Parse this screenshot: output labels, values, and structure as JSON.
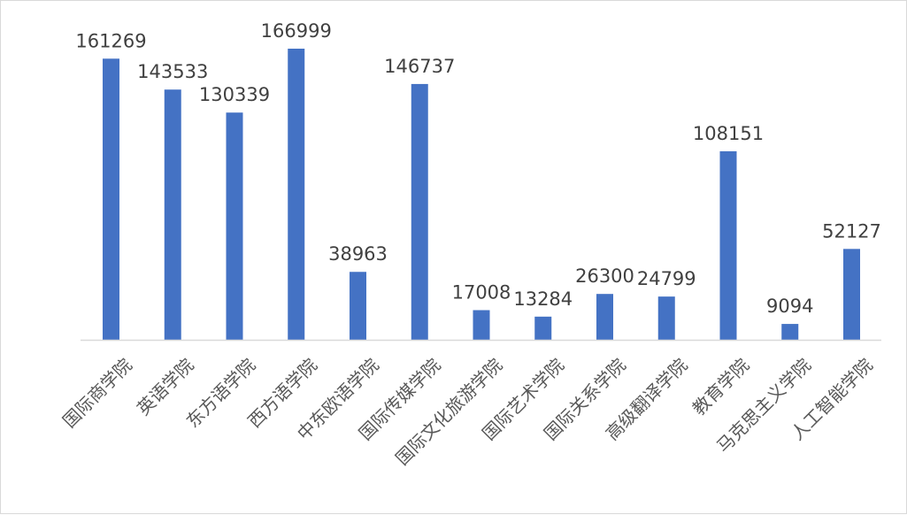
{
  "chart_data": {
    "type": "bar",
    "title": "",
    "xlabel": "",
    "ylabel": "",
    "color": "#4472C4",
    "axis_color": "#d9d9d9",
    "categories": [
      "国际商学院",
      "英语学院",
      "东方语学院",
      "西方语学院",
      "中东欧语学院",
      "国际传媒学院",
      "国际文化旅游学院",
      "国际艺术学院",
      "国际关系学院",
      "高级翻译学院",
      "教育学院",
      "马克思主义学院",
      "人工智能学院"
    ],
    "values": [
      161269,
      143533,
      130339,
      166999,
      38963,
      146737,
      17008,
      13284,
      26300,
      24799,
      108151,
      9094,
      52127
    ],
    "ylim": [
      0,
      166999
    ],
    "grid": false,
    "legend": "none"
  }
}
